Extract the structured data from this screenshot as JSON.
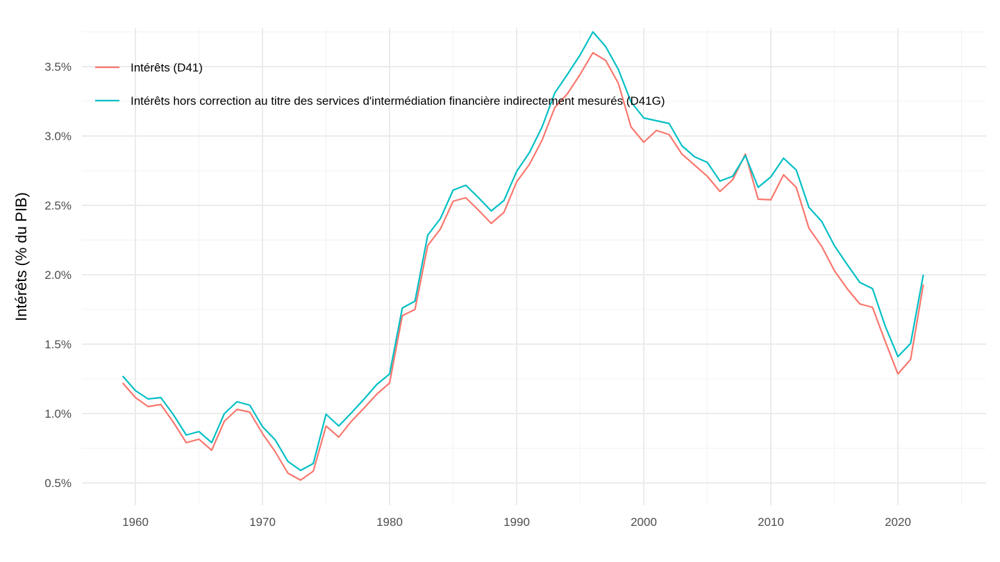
{
  "chart_data": {
    "type": "line",
    "title": "",
    "xlabel": "",
    "ylabel": "Intérêts (% du PIB)",
    "xlim": [
      1955.8,
      2027.2
    ],
    "ylim": [
      0.4,
      3.85
    ],
    "x_ticks": [
      1960,
      1970,
      1980,
      1990,
      2000,
      2010,
      2020
    ],
    "x_tick_labels": [
      "1960",
      "1970",
      "1980",
      "1990",
      "2000",
      "2010",
      "2020"
    ],
    "y_ticks": [
      0.5,
      1.0,
      1.5,
      2.0,
      2.5,
      3.0,
      3.5
    ],
    "y_tick_labels": [
      "0.5%",
      "1.0%",
      "1.5%",
      "2.0%",
      "2.5%",
      "3.0%",
      "3.5%"
    ],
    "grid": true,
    "legend_position": "top-left",
    "x": [
      1959,
      1960,
      1961,
      1962,
      1963,
      1964,
      1965,
      1966,
      1967,
      1968,
      1969,
      1970,
      1971,
      1972,
      1973,
      1974,
      1975,
      1976,
      1977,
      1978,
      1979,
      1980,
      1981,
      1982,
      1983,
      1984,
      1985,
      1986,
      1987,
      1988,
      1989,
      1990,
      1991,
      1992,
      1993,
      1994,
      1995,
      1996,
      1997,
      1998,
      1999,
      2000,
      2001,
      2002,
      2003,
      2004,
      2005,
      2006,
      2007,
      2008,
      2009,
      2010,
      2011,
      2012,
      2013,
      2014,
      2015,
      2016,
      2017,
      2018,
      2019,
      2020,
      2021,
      2022
    ],
    "series": [
      {
        "name": "Intérêts (D41)",
        "color": "#F8766D",
        "values": [
          1.22,
          1.115,
          1.05,
          1.065,
          0.935,
          0.79,
          0.815,
          0.735,
          0.945,
          1.03,
          1.01,
          0.855,
          0.725,
          0.57,
          0.52,
          0.585,
          0.91,
          0.83,
          0.945,
          1.04,
          1.14,
          1.22,
          1.705,
          1.75,
          2.21,
          2.33,
          2.53,
          2.555,
          2.465,
          2.37,
          2.45,
          2.67,
          2.795,
          2.97,
          3.205,
          3.305,
          3.445,
          3.6,
          3.545,
          3.38,
          3.065,
          2.955,
          3.04,
          3.01,
          2.87,
          2.79,
          2.71,
          2.6,
          2.685,
          2.87,
          2.545,
          2.54,
          2.72,
          2.63,
          2.335,
          2.205,
          2.03,
          1.9,
          1.79,
          1.765,
          1.52,
          1.285,
          1.39,
          1.93
        ]
      },
      {
        "name": "Intérêts hors correction au titre des services d'intermédiation financière indirectement mesurés (D41G)",
        "color": "#00BFC4",
        "values": [
          1.27,
          1.165,
          1.105,
          1.115,
          0.99,
          0.845,
          0.87,
          0.79,
          1.0,
          1.085,
          1.06,
          0.905,
          0.81,
          0.655,
          0.59,
          0.64,
          0.995,
          0.91,
          1.005,
          1.105,
          1.21,
          1.285,
          1.76,
          1.81,
          2.285,
          2.405,
          2.61,
          2.645,
          2.555,
          2.46,
          2.535,
          2.745,
          2.88,
          3.065,
          3.31,
          3.445,
          3.585,
          3.75,
          3.645,
          3.48,
          3.245,
          3.13,
          3.11,
          3.09,
          2.93,
          2.85,
          2.81,
          2.675,
          2.71,
          2.86,
          2.63,
          2.705,
          2.84,
          2.755,
          2.485,
          2.385,
          2.21,
          2.075,
          1.945,
          1.9,
          1.63,
          1.41,
          1.505,
          2.0
        ]
      }
    ]
  }
}
